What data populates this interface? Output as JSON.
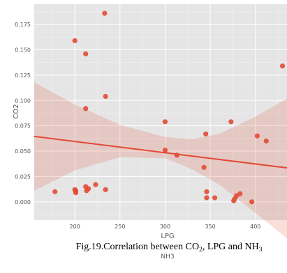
{
  "chart_data": {
    "type": "scatter",
    "xlabel": "LPG",
    "ylabel": "CO2",
    "xlim": [
      155,
      435
    ],
    "ylim": [
      -0.018,
      0.195
    ],
    "xticks": [
      200,
      250,
      300,
      350,
      400
    ],
    "yticks": [
      0.0,
      0.025,
      0.05,
      0.075,
      0.1,
      0.125,
      0.15,
      0.175
    ],
    "xtick_labels": [
      "200",
      "250",
      "300",
      "350",
      "400"
    ],
    "ytick_labels": [
      "0.000",
      "0.025",
      "0.050",
      "0.075",
      "0.100",
      "0.125",
      "0.150",
      "0.175"
    ],
    "grid": true,
    "points": {
      "x": [
        178,
        200,
        200,
        201,
        201,
        212,
        212,
        212,
        213,
        215,
        223,
        233,
        234,
        234,
        300,
        300,
        313,
        343,
        345,
        346,
        346,
        355,
        373,
        376,
        377,
        379,
        383,
        396,
        402,
        412,
        430
      ],
      "y": [
        0.01,
        0.159,
        0.012,
        0.011,
        0.009,
        0.146,
        0.092,
        0.015,
        0.011,
        0.013,
        0.017,
        0.186,
        0.104,
        0.012,
        0.079,
        0.051,
        0.046,
        0.034,
        0.067,
        0.01,
        0.004,
        0.004,
        0.079,
        0.001,
        0.003,
        0.006,
        0.008,
        0.0,
        0.065,
        0.06,
        0.134
      ]
    },
    "regression": {
      "x": [
        155,
        435
      ],
      "y": [
        0.0645,
        0.0335
      ]
    },
    "confidence_band": {
      "x": [
        155,
        200,
        250,
        300,
        330,
        360,
        400,
        435
      ],
      "upper": [
        0.118,
        0.096,
        0.076,
        0.064,
        0.062,
        0.067,
        0.084,
        0.102
      ],
      "lower": [
        0.011,
        0.031,
        0.044,
        0.043,
        0.032,
        0.017,
        -0.011,
        -0.036
      ]
    },
    "colors": {
      "point": "#e24a33",
      "line": "#e24a33",
      "band": "#e24a33",
      "plot_bg": "#e5e5e5",
      "grid": "#ffffff"
    }
  },
  "caption": {
    "prefix": "Fig.19.Correlation between CO",
    "sub1": "2",
    "middle": ", LPG and NH",
    "sub2": "3",
    "wrap": "NH3"
  }
}
